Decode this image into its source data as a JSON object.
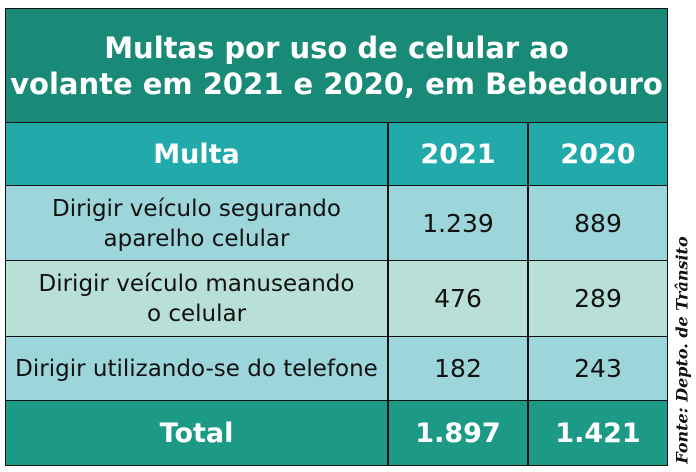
{
  "header": {
    "title_lines": [
      "Multas por uso de celular ao",
      "volante em 2021 e 2020, em Bebedouro"
    ]
  },
  "table": {
    "columns": [
      "Multa",
      "2021",
      "2020"
    ],
    "rows": [
      [
        [
          "Dirigir veículo segurando",
          "aparelho celular"
        ],
        "1.239",
        "889"
      ],
      [
        [
          "Dirigir veículo manuseando",
          "o celular"
        ],
        "476",
        "289"
      ],
      [
        [
          "Dirigir utilizando-se do telefone"
        ],
        "182",
        "243"
      ]
    ],
    "total": [
      "Total",
      "1.897",
      "1.421"
    ]
  },
  "source": "Fonte: Depto. de Trânsito"
}
